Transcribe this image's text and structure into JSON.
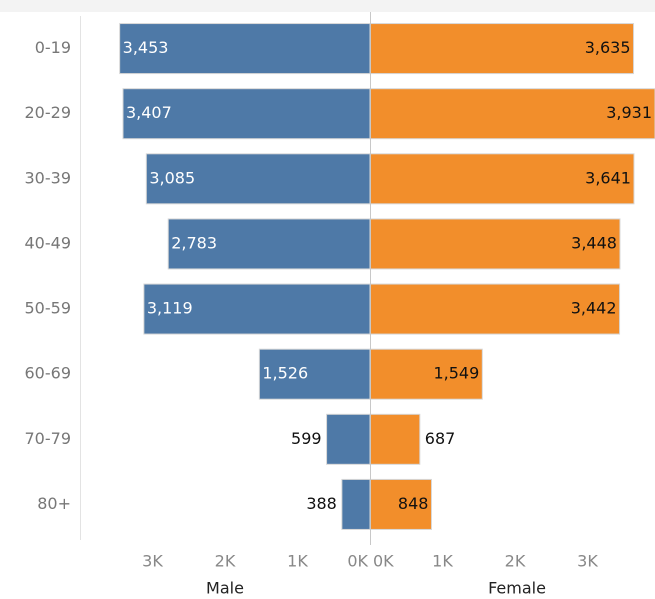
{
  "chart_data": {
    "type": "bar",
    "orientation": "horizontal",
    "layout": "population-pyramid",
    "categories": [
      "0-19",
      "20-29",
      "30-39",
      "40-49",
      "50-59",
      "60-69",
      "70-79",
      "80+"
    ],
    "series": [
      {
        "name": "Male",
        "values": [
          3453,
          3407,
          3085,
          2783,
          3119,
          1526,
          599,
          388
        ],
        "labels": [
          "3,453",
          "3,407",
          "3,085",
          "2,783",
          "3,119",
          "1,526",
          "599",
          "388"
        ],
        "color": "#4e79a7"
      },
      {
        "name": "Female",
        "values": [
          3635,
          3931,
          3641,
          3448,
          3442,
          1549,
          687,
          848
        ],
        "labels": [
          "3,635",
          "3,931",
          "3,641",
          "3,448",
          "3,442",
          "1,549",
          "687",
          "848"
        ],
        "color": "#f28e2b"
      }
    ],
    "axes": {
      "male": {
        "ticks": [
          3000,
          2000,
          1000,
          0
        ],
        "tick_labels": [
          "3K",
          "2K",
          "1K",
          "0K"
        ],
        "reversed": true,
        "title": "Male"
      },
      "female": {
        "ticks": [
          0,
          1000,
          2000,
          3000
        ],
        "tick_labels": [
          "0K",
          "1K",
          "2K",
          "3K"
        ],
        "title": "Female"
      }
    },
    "xlim": [
      0,
      3931
    ],
    "grid": false,
    "legend": "none"
  }
}
